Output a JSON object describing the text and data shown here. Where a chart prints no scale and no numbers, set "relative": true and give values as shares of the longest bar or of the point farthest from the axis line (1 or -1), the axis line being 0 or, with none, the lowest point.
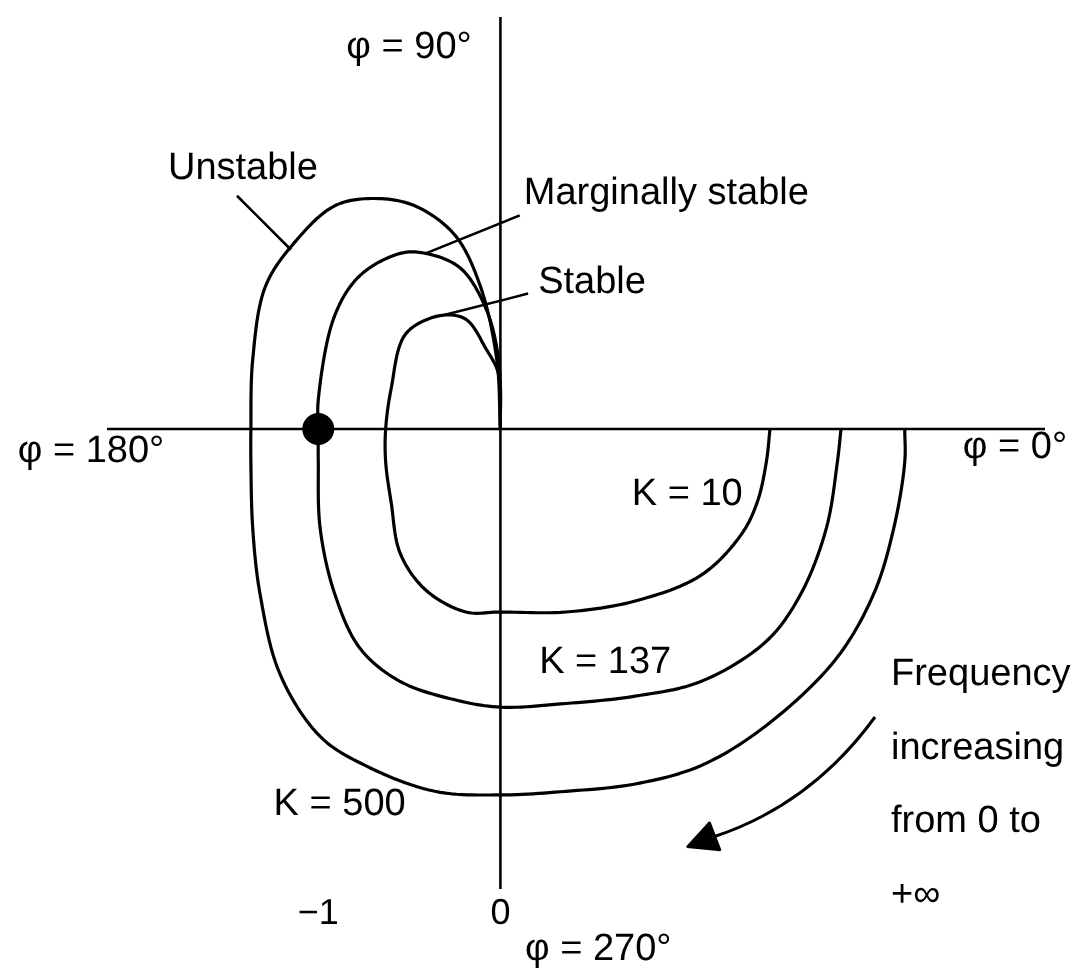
{
  "chart_data": {
    "type": "line",
    "relative": true,
    "xlim": [
      -2.16,
      2.99
    ],
    "xticks": [
      {
        "value": -1,
        "label": "−1"
      },
      0
    ],
    "ref_lines": [
      {
        "axis": "x",
        "value": 0,
        "color": "#000000"
      }
    ],
    "series": [
      {
        "name": "K = 10",
        "color": "#000000",
        "x": [
          1.48,
          1.46,
          1.41,
          1.32,
          1.1,
          0.74,
          0.36,
          0,
          -0.19,
          -0.41,
          -0.55,
          -0.6,
          -0.63,
          -0.63,
          -0.6,
          -0.52,
          -0.33,
          -0.19,
          -0.08,
          -0.01,
          0
        ],
        "values": [
          0,
          -0.09,
          -0.2,
          -0.29,
          -0.4,
          -0.47,
          -0.5,
          -0.5,
          -0.5,
          -0.44,
          -0.34,
          -0.2,
          -0.09,
          0,
          0.11,
          0.26,
          0.31,
          0.3,
          0.22,
          0.15,
          0
        ]
      },
      {
        "name": "K = 137",
        "color": "#000000",
        "x": [
          1.87,
          1.85,
          1.79,
          1.65,
          1.46,
          1.1,
          0.74,
          0.36,
          0,
          -0.25,
          -0.55,
          -0.77,
          -0.91,
          -0.99,
          -1.0,
          -1.0,
          -1.0,
          -0.91,
          -0.77,
          -0.55,
          -0.41,
          -0.22,
          -0.08,
          -0.01,
          0
        ],
        "values": [
          0,
          -0.09,
          -0.27,
          -0.45,
          -0.58,
          -0.69,
          -0.73,
          -0.75,
          -0.76,
          -0.74,
          -0.69,
          -0.6,
          -0.45,
          -0.27,
          -0.09,
          0,
          0.08,
          0.31,
          0.42,
          0.48,
          0.48,
          0.44,
          0.33,
          0.19,
          0
        ]
      },
      {
        "name": "K = 500",
        "color": "#000000",
        "x": [
          2.22,
          2.22,
          2.16,
          2.05,
          1.84,
          1.46,
          1.1,
          0.74,
          0.36,
          0,
          -0.36,
          -0.74,
          -0.99,
          -1.21,
          -1.32,
          -1.36,
          -1.37,
          -1.37,
          -1.36,
          -1.29,
          -1.13,
          -0.91,
          -0.69,
          -0.47,
          -0.25,
          -0.11,
          -0.02,
          0
        ],
        "values": [
          0,
          -0.09,
          -0.27,
          -0.45,
          -0.63,
          -0.81,
          -0.92,
          -0.97,
          -0.99,
          -1.0,
          -0.99,
          -0.92,
          -0.84,
          -0.67,
          -0.45,
          -0.27,
          -0.09,
          0,
          0.19,
          0.39,
          0.51,
          0.61,
          0.63,
          0.61,
          0.53,
          0.39,
          0.19,
          0
        ]
      },
      {
        "type": "scatter",
        "color": "#000000",
        "marker": "circle",
        "x": [
          -1
        ],
        "values": [
          0
        ]
      }
    ],
    "annotations": [
      "φ = 90°",
      "φ = 180°",
      "φ = 0°",
      "φ = 270°",
      {
        "text": "Unstable",
        "x": -1.15,
        "y": 0.49
      },
      {
        "text": "Marginally stable",
        "x": -0.41,
        "y": 0.48
      },
      {
        "text": "Stable",
        "x": -0.32,
        "y": 0.31
      },
      "Frequency increasing from 0 to +∞"
    ]
  }
}
